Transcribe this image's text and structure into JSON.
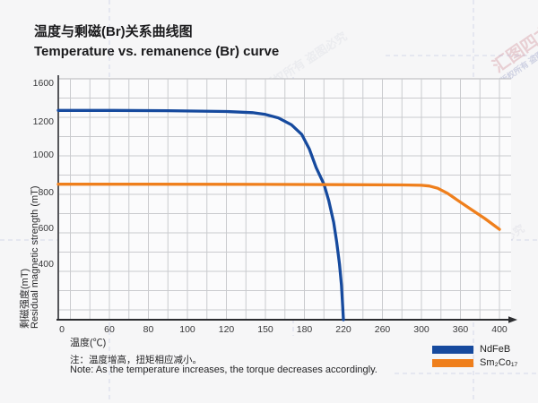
{
  "header": {
    "title_zh": "温度与剩磁(Br)关系曲线图",
    "title_en": "Temperature vs. remanence (Br) curve"
  },
  "footer": {
    "note_zh": "注：温度增高，扭矩相应减小。",
    "note_en": "Note: As the temperature increases, the torque decreases accordingly."
  },
  "watermark": {
    "primary": "汇图四方",
    "secondary": "版权所有 盗图必究"
  },
  "legend": {
    "items": [
      {
        "label": "NdFeB",
        "color": "#164a9e"
      },
      {
        "label": "Sm₂Co₁₇",
        "color": "#ef7f1c"
      }
    ]
  },
  "chart_data": {
    "type": "line",
    "title": "温度与剩磁(Br)关系曲线图 / Temperature vs. remanence (Br) curve",
    "xlabel": "温度(℃)",
    "ylabel_zh": "剩磁强度(mT)",
    "ylabel_en": "Residual magnetic strength (mT)",
    "ylabel": "剩磁强度(mT) Residual magnetic strength (mT)",
    "x_ticks": [
      0,
      60,
      80,
      100,
      120,
      150,
      180,
      220,
      260,
      300,
      360,
      400
    ],
    "x_tick_labels": [
      "0",
      "60",
      "80",
      "100",
      "120",
      "150",
      "180",
      "220",
      "260",
      "300",
      "360",
      "400"
    ],
    "y_tick_labels": [
      "1600",
      "1200",
      "1000",
      "800",
      "600",
      "400"
    ],
    "ylim": [
      0,
      1600
    ],
    "x_scale_note": "non-linear axis: labeled ticks are evenly spaced",
    "grid": true,
    "legend_position": "bottom-right outside plot",
    "series": [
      {
        "name": "NdFeB",
        "color": "#164a9e",
        "points": [
          [
            0,
            1390
          ],
          [
            60,
            1390
          ],
          [
            90,
            1388
          ],
          [
            120,
            1383
          ],
          [
            140,
            1375
          ],
          [
            150,
            1363
          ],
          [
            160,
            1340
          ],
          [
            170,
            1295
          ],
          [
            178,
            1230
          ],
          [
            185,
            1135
          ],
          [
            192,
            1010
          ],
          [
            200,
            900
          ],
          [
            205,
            790
          ],
          [
            210,
            648
          ],
          [
            213,
            520
          ],
          [
            216,
            370
          ],
          [
            218,
            230
          ],
          [
            219,
            120
          ],
          [
            220,
            0
          ]
        ]
      },
      {
        "name": "Sm2Co17",
        "color": "#ef7f1c",
        "points": [
          [
            0,
            900
          ],
          [
            80,
            900
          ],
          [
            150,
            899
          ],
          [
            220,
            897
          ],
          [
            280,
            895
          ],
          [
            300,
            893
          ],
          [
            312,
            888
          ],
          [
            325,
            873
          ],
          [
            340,
            840
          ],
          [
            355,
            795
          ],
          [
            370,
            737
          ],
          [
            385,
            672
          ],
          [
            400,
            600
          ]
        ]
      }
    ]
  }
}
